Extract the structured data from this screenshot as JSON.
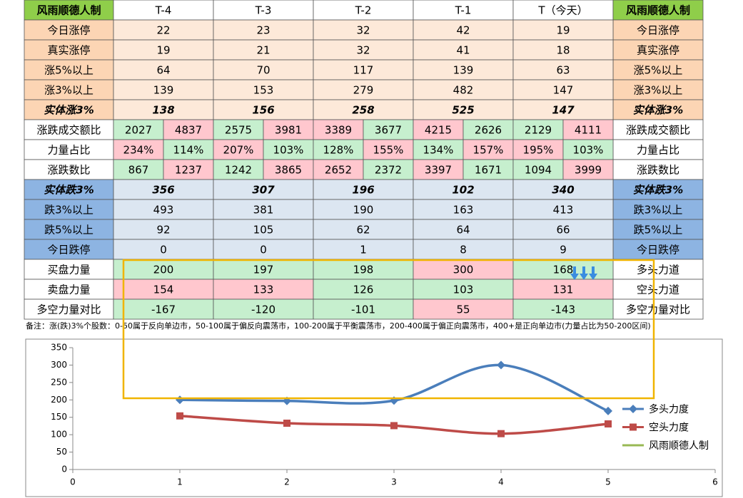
{
  "table": {
    "header": [
      "风雨顺德人制",
      "T-4",
      "T-3",
      "T-2",
      "T-1",
      "T（今天）",
      "风雨顺德人制"
    ],
    "rows": [
      {
        "label": "今日涨停",
        "values": [
          22,
          23,
          32,
          42,
          19
        ],
        "right_label": "今日涨停"
      },
      {
        "label": "真实涨停",
        "values": [
          19,
          21,
          32,
          41,
          18
        ],
        "right_label": "真实涨停"
      },
      {
        "label": "涨5%以上",
        "values": [
          64,
          70,
          117,
          139,
          63
        ],
        "right_label": "涨5%以上"
      },
      {
        "label": "涨3%以上",
        "values": [
          139,
          153,
          279,
          482,
          147
        ],
        "right_label": "涨3%以上"
      },
      {
        "label": "实体涨3%",
        "values": [
          138,
          156,
          258,
          525,
          147
        ],
        "right_label": "实体涨3%"
      },
      {
        "label": "涨跌成交额比",
        "values": [
          [
            2027,
            4837
          ],
          [
            2575,
            3981
          ],
          [
            3389,
            3677
          ],
          [
            4215,
            2626
          ],
          [
            2129,
            4111
          ]
        ],
        "right_label": "涨跌成交额比"
      },
      {
        "label": "力量占比",
        "values": [
          [
            "234%",
            "114%"
          ],
          [
            "207%",
            "103%"
          ],
          [
            "128%",
            "155%"
          ],
          [
            "134%",
            "157%"
          ],
          [
            "195%",
            "103%"
          ]
        ],
        "right_label": "力量占比"
      },
      {
        "label": "涨跌数比",
        "values": [
          [
            867,
            1237
          ],
          [
            1242,
            3865
          ],
          [
            2652,
            2372
          ],
          [
            3397,
            1671
          ],
          [
            1094,
            3999
          ]
        ],
        "right_label": "涨跌数比"
      },
      {
        "label": "实体跌3%",
        "values": [
          356,
          307,
          196,
          102,
          340
        ],
        "right_label": "实体跌3%"
      },
      {
        "label": "跌3%以上",
        "values": [
          493,
          381,
          190,
          163,
          413
        ],
        "right_label": "跌3%以上"
      },
      {
        "label": "跌5%以上",
        "values": [
          92,
          105,
          62,
          64,
          66
        ],
        "right_label": "跌5%以上"
      },
      {
        "label": "今日跌停",
        "values": [
          0,
          0,
          1,
          8,
          9
        ],
        "right_label": "今日跌停"
      },
      {
        "label": "买盘力量",
        "values": [
          200,
          197,
          198,
          300,
          168
        ],
        "right_label": "多头力道"
      },
      {
        "label": "卖盘力量",
        "values": [
          154,
          133,
          126,
          103,
          131
        ],
        "right_label": "空头力道"
      },
      {
        "label": "多空力量对比",
        "values": [
          -167,
          -120,
          -101,
          55,
          -143
        ],
        "right_label": "多空力量对比"
      }
    ],
    "note": "备注：涨(跌)3%个股数：0-50属于反向单边市，50-100属于偏反向震荡市，100-200属于平衡震荡市，200-400属于偏正向震荡市，400+是正向单边市(力量占比为50-200区间)"
  },
  "chart_data": {
    "type": "line",
    "x": [
      1,
      2,
      3,
      4,
      5
    ],
    "series": [
      {
        "name": "多头力度",
        "color": "#4a7ebb",
        "values": [
          200,
          197,
          198,
          300,
          168
        ]
      },
      {
        "name": "空头力度",
        "color": "#be4b48",
        "values": [
          154,
          133,
          126,
          103,
          131
        ]
      },
      {
        "name": "风雨顺德人制",
        "color": "#98b954",
        "values": [
          null,
          null,
          null,
          null,
          null
        ]
      }
    ],
    "xlim": [
      0,
      6
    ],
    "xticks": [
      0,
      1,
      2,
      3,
      4,
      5,
      6
    ],
    "ylim": [
      0,
      350
    ],
    "yticks": [
      0,
      50,
      100,
      150,
      200,
      250,
      300,
      350
    ],
    "smooth": true
  }
}
